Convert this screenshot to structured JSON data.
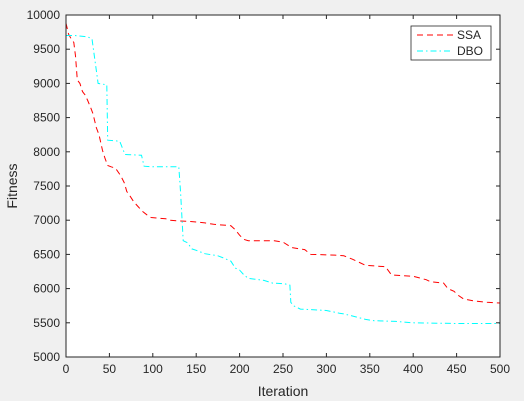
{
  "chart_data": {
    "type": "line",
    "xlabel": "Iteration",
    "ylabel": "Fitness",
    "xlim": [
      0,
      500
    ],
    "ylim": [
      5000,
      10000
    ],
    "xticks": [
      0,
      50,
      100,
      150,
      200,
      250,
      300,
      350,
      400,
      450,
      500
    ],
    "yticks": [
      5000,
      5500,
      6000,
      6500,
      7000,
      7500,
      8000,
      8500,
      9000,
      9500,
      10000
    ],
    "grid": false,
    "legend_position": "top-right",
    "series": [
      {
        "name": "SSA",
        "color": "#ff0000",
        "dash": "dashed",
        "points": [
          [
            0,
            9880
          ],
          [
            3,
            9720
          ],
          [
            6,
            9650
          ],
          [
            9,
            9600
          ],
          [
            11,
            9400
          ],
          [
            13,
            9050
          ],
          [
            16,
            9000
          ],
          [
            19,
            8880
          ],
          [
            22,
            8830
          ],
          [
            25,
            8750
          ],
          [
            28,
            8660
          ],
          [
            31,
            8560
          ],
          [
            35,
            8350
          ],
          [
            38,
            8250
          ],
          [
            42,
            8020
          ],
          [
            45,
            7900
          ],
          [
            48,
            7800
          ],
          [
            52,
            7780
          ],
          [
            57,
            7760
          ],
          [
            63,
            7650
          ],
          [
            67,
            7550
          ],
          [
            70,
            7420
          ],
          [
            74,
            7350
          ],
          [
            78,
            7270
          ],
          [
            83,
            7200
          ],
          [
            88,
            7130
          ],
          [
            93,
            7080
          ],
          [
            98,
            7040
          ],
          [
            105,
            7030
          ],
          [
            115,
            7020
          ],
          [
            120,
            7000
          ],
          [
            130,
            6990
          ],
          [
            145,
            6980
          ],
          [
            160,
            6960
          ],
          [
            170,
            6940
          ],
          [
            190,
            6920
          ],
          [
            195,
            6860
          ],
          [
            200,
            6780
          ],
          [
            205,
            6720
          ],
          [
            210,
            6700
          ],
          [
            240,
            6700
          ],
          [
            250,
            6680
          ],
          [
            260,
            6600
          ],
          [
            275,
            6570
          ],
          [
            282,
            6500
          ],
          [
            310,
            6490
          ],
          [
            320,
            6480
          ],
          [
            330,
            6430
          ],
          [
            345,
            6340
          ],
          [
            368,
            6320
          ],
          [
            375,
            6200
          ],
          [
            400,
            6180
          ],
          [
            415,
            6130
          ],
          [
            420,
            6100
          ],
          [
            435,
            6080
          ],
          [
            440,
            6000
          ],
          [
            447,
            5960
          ],
          [
            452,
            5900
          ],
          [
            458,
            5850
          ],
          [
            470,
            5820
          ],
          [
            485,
            5800
          ],
          [
            500,
            5790
          ]
        ]
      },
      {
        "name": "DBO",
        "color": "#00ffff",
        "dash": "dash-dot",
        "points": [
          [
            0,
            9700
          ],
          [
            10,
            9700
          ],
          [
            25,
            9680
          ],
          [
            30,
            9650
          ],
          [
            37,
            9000
          ],
          [
            47,
            8980
          ],
          [
            48,
            8170
          ],
          [
            58,
            8160
          ],
          [
            62,
            8150
          ],
          [
            68,
            7960
          ],
          [
            87,
            7950
          ],
          [
            90,
            7790
          ],
          [
            100,
            7780
          ],
          [
            130,
            7780
          ],
          [
            132,
            7400
          ],
          [
            135,
            6700
          ],
          [
            140,
            6670
          ],
          [
            145,
            6580
          ],
          [
            150,
            6560
          ],
          [
            160,
            6510
          ],
          [
            175,
            6480
          ],
          [
            183,
            6440
          ],
          [
            190,
            6400
          ],
          [
            195,
            6300
          ],
          [
            200,
            6270
          ],
          [
            205,
            6200
          ],
          [
            210,
            6150
          ],
          [
            228,
            6120
          ],
          [
            238,
            6080
          ],
          [
            252,
            6070
          ],
          [
            258,
            6050
          ],
          [
            259,
            5800
          ],
          [
            262,
            5750
          ],
          [
            270,
            5700
          ],
          [
            285,
            5690
          ],
          [
            300,
            5680
          ],
          [
            308,
            5660
          ],
          [
            315,
            5640
          ],
          [
            320,
            5630
          ],
          [
            330,
            5600
          ],
          [
            345,
            5550
          ],
          [
            355,
            5530
          ],
          [
            380,
            5520
          ],
          [
            400,
            5500
          ],
          [
            450,
            5490
          ],
          [
            500,
            5490
          ]
        ]
      }
    ]
  }
}
